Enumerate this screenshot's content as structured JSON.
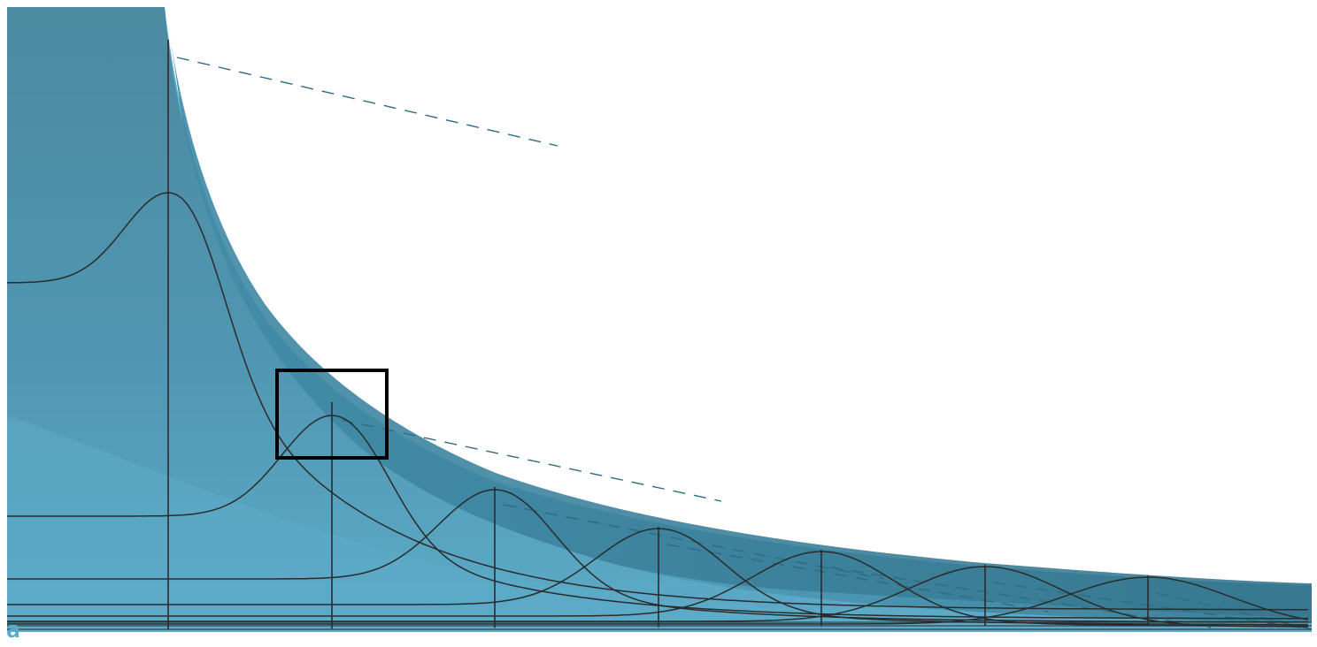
{
  "figure": {
    "corner_label": "a",
    "colors": {
      "surface_light": "#5aaac8",
      "surface_mid": "#4a93ae",
      "surface_dark": "#3b819c",
      "surface_shadow": "#37778f",
      "mesh_line": "#2b2b2b",
      "dashed_line": "#2f6b82",
      "highlight_box": "#000000",
      "label": "#5aaac8"
    },
    "surface": {
      "shape": "decaying surface with Gaussian bumps along a descending ridge",
      "mesh_columns": 8,
      "cross_section_curves": 6,
      "dashed_guide_lines": true,
      "highlight_box_count": 1
    }
  }
}
